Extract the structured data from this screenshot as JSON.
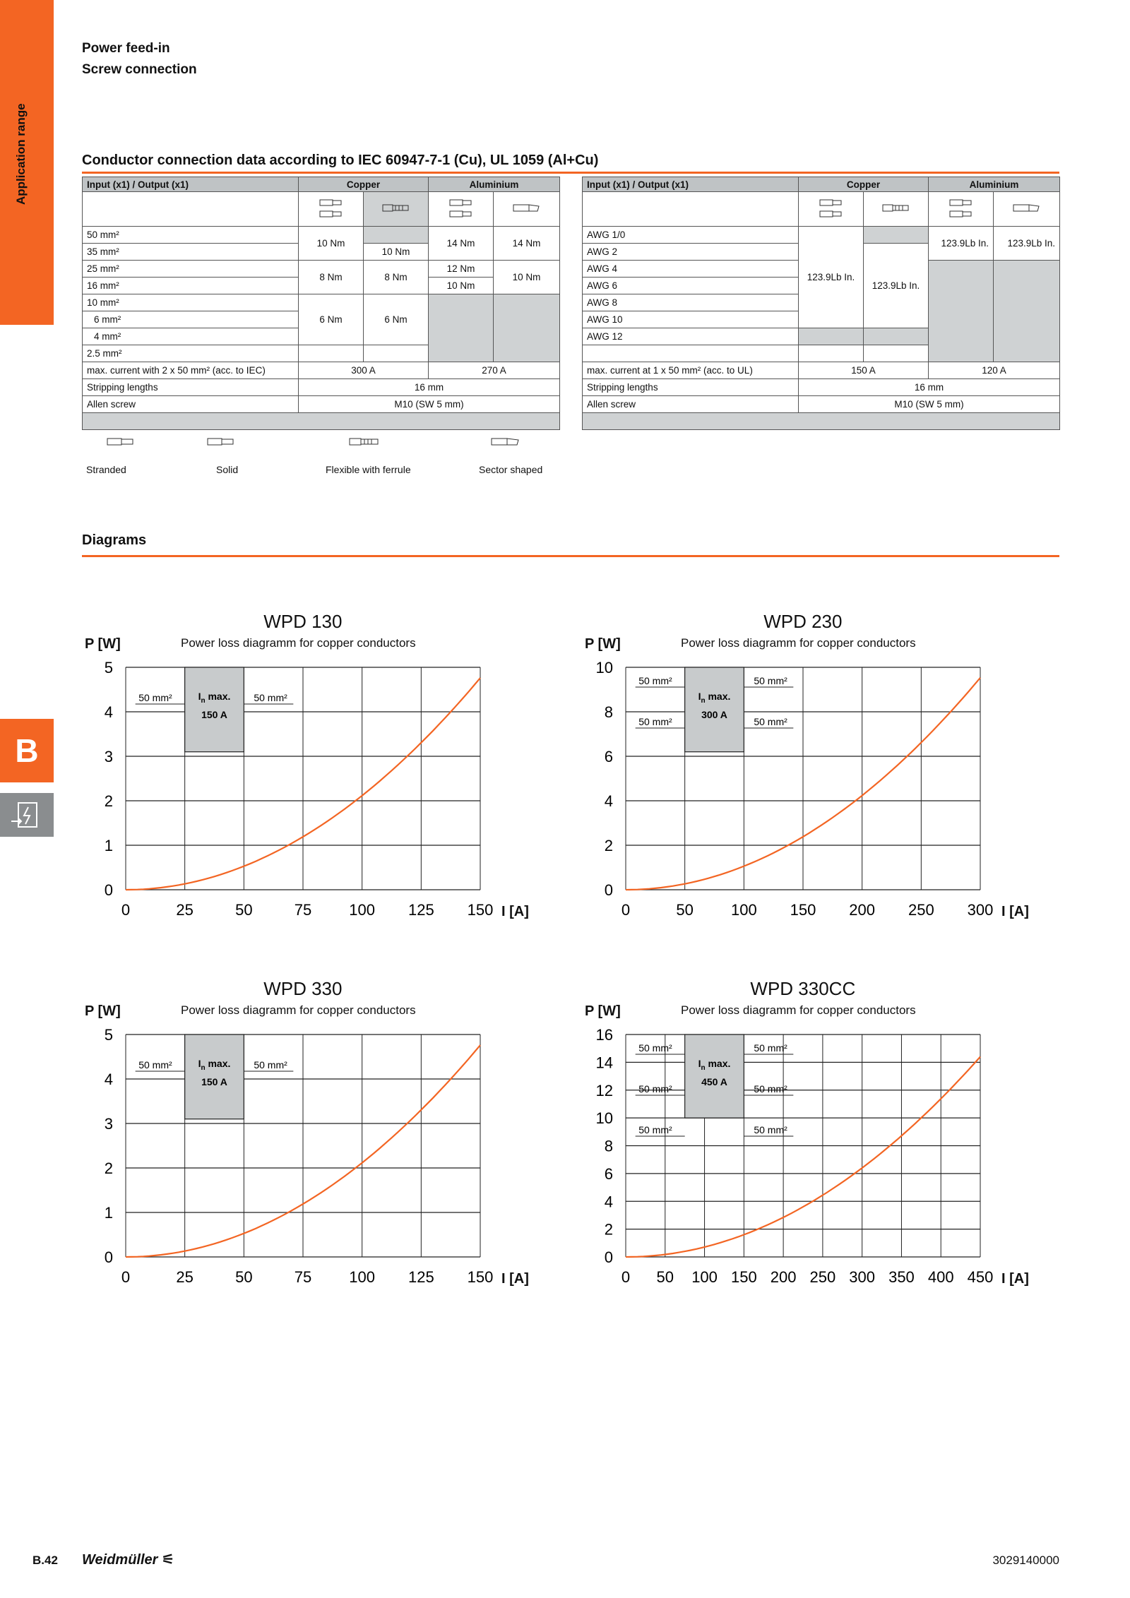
{
  "side": {
    "range_label": "Application range",
    "section_letter": "B"
  },
  "header": {
    "line1": "Power feed-in",
    "line2": "Screw connection"
  },
  "conductor": {
    "title": "Conductor connection data according to IEC 60947-7-1 (Cu), UL 1059 (Al+Cu)",
    "iec": {
      "col_input": "Input (x1) / Output (x1)",
      "col_copper": "Copper",
      "col_aluminium": "Aluminium",
      "sizes": [
        "50 mm²",
        "35 mm²",
        "25 mm²",
        "16 mm²",
        "10 mm²",
        "6 mm²",
        "4 mm²",
        "2.5 mm²"
      ],
      "v_10nm_a": "10 Nm",
      "v_10nm_b": "10 Nm",
      "v_14nm_a": "14 Nm",
      "v_14nm_b": "14 Nm",
      "v_8nm_a": "8 Nm",
      "v_8nm_b": "8 Nm",
      "v_12nm": "12 Nm",
      "v_10nm_c": "10 Nm",
      "v_10nm_d": "10 Nm",
      "v_6nm_a": "6 Nm",
      "v_6nm_b": "6 Nm",
      "max_label": "max. current with 2 x 50 mm² (acc. to IEC)",
      "max_cu": "300 A",
      "max_al": "270 A",
      "strip_label": "Stripping lengths",
      "strip_val": "16 mm",
      "allen_label": "Allen screw",
      "allen_val": "M10 (SW 5 mm)"
    },
    "ul": {
      "col_input": "Input (x1) / Output (x1)",
      "col_copper": "Copper",
      "col_aluminium": "Aluminium",
      "sizes": [
        "AWG 1/0",
        "AWG 2",
        "AWG 4",
        "AWG 6",
        "AWG 8",
        "AWG 10",
        "AWG 12"
      ],
      "v_cu1": "123.9Lb In.",
      "v_cu2": "123.9Lb In.",
      "v_al1": "123.9Lb In.",
      "v_al2": "123.9Lb In.",
      "max_label": "max. current at 1 x 50 mm² (acc. to UL)",
      "max_cu": "150 A",
      "max_al": "120 A",
      "strip_label": "Stripping lengths",
      "strip_val": "16 mm",
      "allen_label": "Allen screw",
      "allen_val": "M10 (SW 5 mm)"
    },
    "legend": [
      "Stranded",
      "Solid",
      "Flexible with ferrule",
      "Sector shaped"
    ]
  },
  "diagrams_title": "Diagrams",
  "chart_data": [
    {
      "type": "line",
      "title": "WPD 130",
      "subtitle": "Power loss diagramm for copper conductors",
      "ylabel": "P [W]",
      "xlabel": "I [A]",
      "xlim": [
        0,
        150
      ],
      "ylim": [
        0,
        5
      ],
      "xticks": [
        0,
        25,
        50,
        75,
        100,
        125,
        150
      ],
      "yticks": [
        0,
        1,
        2,
        3,
        4,
        5
      ],
      "x": [
        0,
        25,
        50,
        75,
        100,
        125,
        150
      ],
      "y": [
        0,
        0.13,
        0.53,
        1.19,
        2.12,
        3.31,
        4.76
      ],
      "box": {
        "label": "max.",
        "value": "150 A",
        "x0": 25,
        "x1": 50,
        "y0": 3.1,
        "y1": 5
      },
      "conn_labels": [
        "50 mm²",
        "50 mm²"
      ]
    },
    {
      "type": "line",
      "title": "WPD 230",
      "subtitle": "Power loss diagramm for copper conductors",
      "ylabel": "P [W]",
      "xlabel": "I [A]",
      "xlim": [
        0,
        300
      ],
      "ylim": [
        0,
        10
      ],
      "xticks": [
        0,
        50,
        100,
        150,
        200,
        250,
        300
      ],
      "yticks": [
        0,
        2,
        4,
        6,
        8,
        10
      ],
      "x": [
        0,
        50,
        100,
        150,
        200,
        250,
        300
      ],
      "y": [
        0,
        0.27,
        1.06,
        2.38,
        4.24,
        6.62,
        9.53
      ],
      "box": {
        "label": "max.",
        "value": "300 A",
        "x0": 50,
        "x1": 100,
        "y0": 6.2,
        "y1": 10
      },
      "conn_labels": [
        "50 mm²",
        "50 mm²",
        "50 mm²",
        "50 mm²"
      ]
    },
    {
      "type": "line",
      "title": "WPD 330",
      "subtitle": "Power loss diagramm for copper conductors",
      "ylabel": "P [W]",
      "xlabel": "I [A]",
      "xlim": [
        0,
        150
      ],
      "ylim": [
        0,
        5
      ],
      "xticks": [
        0,
        25,
        50,
        75,
        100,
        125,
        150
      ],
      "yticks": [
        0,
        1,
        2,
        3,
        4,
        5
      ],
      "x": [
        0,
        25,
        50,
        75,
        100,
        125,
        150
      ],
      "y": [
        0,
        0.13,
        0.53,
        1.19,
        2.12,
        3.31,
        4.76
      ],
      "box": {
        "label": "max.",
        "value": "150 A",
        "x0": 25,
        "x1": 50,
        "y0": 3.1,
        "y1": 5
      },
      "conn_labels": [
        "50 mm²",
        "50 mm²"
      ]
    },
    {
      "type": "line",
      "title": "WPD 330CC",
      "subtitle": "Power loss diagramm for copper conductors",
      "ylabel": "P [W]",
      "xlabel": "I [A]",
      "xlim": [
        0,
        450
      ],
      "ylim": [
        0,
        16
      ],
      "xticks": [
        0,
        50,
        100,
        150,
        200,
        250,
        300,
        350,
        400,
        450
      ],
      "yticks": [
        0,
        2,
        4,
        6,
        8,
        10,
        12,
        14,
        16
      ],
      "x": [
        0,
        75,
        150,
        225,
        300,
        375,
        450
      ],
      "y": [
        0,
        0.4,
        1.6,
        3.6,
        6.4,
        10.0,
        14.4
      ],
      "box": {
        "label": "max.",
        "value": "450 A",
        "x0": 75,
        "x1": 150,
        "y0": 10,
        "y1": 16
      },
      "conn_labels": [
        "50 mm²",
        "50 mm²",
        "50 mm²",
        "50 mm²",
        "50 mm²",
        "50 mm²"
      ]
    }
  ],
  "footer": {
    "page": "B.42",
    "brand": "Weidmüller",
    "code": "3029140000"
  },
  "colors": {
    "accent": "#f36523",
    "gray_fill": "#cfd2d3",
    "header_fill": "#bfc3c5"
  }
}
